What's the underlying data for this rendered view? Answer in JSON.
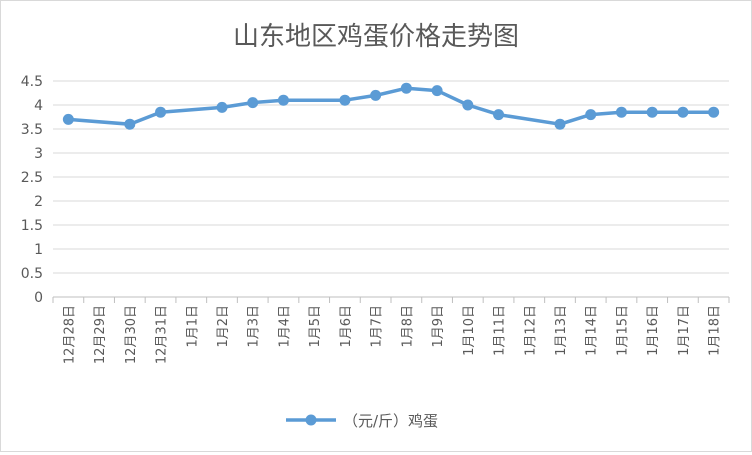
{
  "chart_data": {
    "type": "line",
    "title": "山东地区鸡蛋价格走势图",
    "xlabel": "",
    "ylabel": "",
    "categories": [
      "12月28日",
      "12月29日",
      "12月30日",
      "12月31日",
      "1月1日",
      "1月2日",
      "1月3日",
      "1月4日",
      "1月5日",
      "1月6日",
      "1月7日",
      "1月8日",
      "1月9日",
      "1月10日",
      "1月11日",
      "1月12日",
      "1月13日",
      "1月14日",
      "1月15日",
      "1月16日",
      "1月17日",
      "1月18日"
    ],
    "yticks": [
      "0",
      "0.5",
      "1",
      "1.5",
      "2",
      "2.5",
      "3",
      "3.5",
      "4",
      "4.5"
    ],
    "ylim": [
      0,
      4.5
    ],
    "grid": true,
    "legend_position": "bottom",
    "series": [
      {
        "name": "（元/斤）鸡蛋",
        "color": "#5b9bd5",
        "values": [
          3.7,
          null,
          3.6,
          3.85,
          null,
          3.95,
          4.05,
          4.1,
          null,
          4.1,
          4.2,
          4.35,
          4.3,
          4.0,
          3.8,
          null,
          3.6,
          3.8,
          3.85,
          3.85,
          3.85,
          3.85
        ]
      }
    ]
  }
}
